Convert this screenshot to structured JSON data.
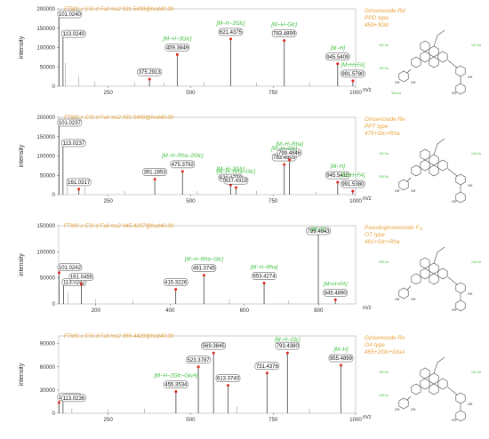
{
  "chart_data": [
    {
      "type": "bar",
      "title": "FTMS-c ESI d Full ms2 991.5499@hcd40.00",
      "compound": [
        "Ginsenoside Rd",
        "PPD type",
        "459+3Glc"
      ],
      "ylabel": "intensity",
      "xlabel": "m/z",
      "xlim": [
        100,
        1000
      ],
      "ylim": [
        0,
        200000
      ],
      "xticks": [
        "250",
        "500",
        "750",
        "1000"
      ],
      "yticks": [
        "0",
        "50000",
        "100000",
        "150000",
        "200000"
      ],
      "peaks": [
        {
          "x": 101.024,
          "y": 185000,
          "label": "101.0240"
        },
        {
          "x": 113.024,
          "y": 140000,
          "label": "113.0240"
        },
        {
          "x": 375.2913,
          "y": 18000,
          "label": "375.2913"
        },
        {
          "x": 459.3849,
          "y": 82000,
          "label": "459.3849"
        },
        {
          "x": 621.4375,
          "y": 122000,
          "label": "621.4375"
        },
        {
          "x": 783.4899,
          "y": 118000,
          "label": "783.4899"
        },
        {
          "x": 945.5409,
          "y": 58000,
          "label": "945.5409"
        },
        {
          "x": 991.578,
          "y": 14000,
          "label": "991.5780"
        }
      ],
      "minor_peaks": [
        {
          "x": 120,
          "y": 60000
        },
        {
          "x": 160,
          "y": 26000
        },
        {
          "x": 210,
          "y": 12000
        },
        {
          "x": 330,
          "y": 9000
        },
        {
          "x": 420,
          "y": 10000
        },
        {
          "x": 540,
          "y": 11000
        },
        {
          "x": 700,
          "y": 9000
        },
        {
          "x": 860,
          "y": 10000
        }
      ],
      "annotations": [
        {
          "text": "[M−H−3Glc]",
          "x": 459.3849
        },
        {
          "text": "[M−H−2Glc]",
          "x": 621.4375
        },
        {
          "text": "[M−H−Glc]",
          "x": 783.4899
        },
        {
          "text": "[M−H]",
          "x": 945.5409
        },
        {
          "text": "[M+H+FA]",
          "x": 991.578
        }
      ],
      "structure_labels": [
        "162 Da",
        "162 Da",
        "162 Da",
        "308 Da"
      ]
    },
    {
      "type": "bar",
      "title": "FTMS-c ESI d Full ms2 991.5499@hcd40.00",
      "compound": [
        "Ginsenoside Re",
        "PPT type",
        "475+Glc+Rha"
      ],
      "ylabel": "intensity",
      "xlabel": "m/z",
      "xlim": [
        100,
        1000
      ],
      "ylim": [
        0,
        200000
      ],
      "xticks": [
        "250",
        "500",
        "750",
        "1000"
      ],
      "yticks": [
        "0",
        "50000",
        "100000",
        "150000",
        "200000"
      ],
      "peaks": [
        {
          "x": 101.0237,
          "y": 188000,
          "label": "101.0237"
        },
        {
          "x": 113.0237,
          "y": 138000,
          "label": "113.0237"
        },
        {
          "x": 161.0317,
          "y": 14000,
          "label": "161.0317"
        },
        {
          "x": 391.2853,
          "y": 40000,
          "label": "391.2853"
        },
        {
          "x": 475.3792,
          "y": 60000,
          "label": "475.3792"
        },
        {
          "x": 621.1773,
          "y": 25000,
          "label": "621.1773"
        },
        {
          "x": 637.4319,
          "y": 18000,
          "label": "637.4319"
        },
        {
          "x": 783.4903,
          "y": 78000,
          "label": "783.4903"
        },
        {
          "x": 799.4846,
          "y": 90000,
          "label": "799.4846"
        },
        {
          "x": 945.5415,
          "y": 32000,
          "label": "945.5415"
        },
        {
          "x": 991.538,
          "y": 9000,
          "label": "991.5380"
        }
      ],
      "minor_peaks": [
        {
          "x": 125,
          "y": 42000
        },
        {
          "x": 180,
          "y": 20000
        },
        {
          "x": 300,
          "y": 9000
        },
        {
          "x": 520,
          "y": 9000
        },
        {
          "x": 700,
          "y": 10000
        },
        {
          "x": 880,
          "y": 8000
        }
      ],
      "annotations": [
        {
          "text": "[M−H−Rha−2Glc]",
          "x": 475.3792
        },
        {
          "text": "[M−H−2Glc]",
          "x": 621.1773
        },
        {
          "text": "[M−H−Rha−Glc]",
          "x": 637.4319
        },
        {
          "text": "[M−H−Glc]",
          "x": 783.4903
        },
        {
          "text": "[M−H−Rha]",
          "x": 799.4846
        },
        {
          "text": "[M−H]",
          "x": 945.5415
        },
        {
          "text": "[M+H+FA]",
          "x": 991.538
        }
      ],
      "structure_labels": [
        "162 Da",
        "146 Da",
        "308 Da"
      ]
    },
    {
      "type": "bar",
      "title": "FTMS-c ESI d Full ms2 945.4297@hcd40.00",
      "compound": [
        "Pseudoginsenoside F₁₁",
        "OT type",
        "491+Glc+Rha"
      ],
      "ylabel": "intensity",
      "xlabel": "m/z",
      "xlim": [
        100,
        900
      ],
      "ylim": [
        0,
        150000
      ],
      "xticks": [
        "200",
        "400",
        "600",
        "800"
      ],
      "yticks": [
        "0",
        "50000",
        "100000",
        "150000"
      ],
      "peaks": [
        {
          "x": 101.0242,
          "y": 60000,
          "label": "101.0242"
        },
        {
          "x": 113.0242,
          "y": 45000,
          "label": "113.0242"
        },
        {
          "x": 161.0455,
          "y": 38000,
          "label": "161.0455"
        },
        {
          "x": 415.3226,
          "y": 28000,
          "label": "415.3226"
        },
        {
          "x": 491.3745,
          "y": 55000,
          "label": "491.3745"
        },
        {
          "x": 653.4274,
          "y": 40000,
          "label": "653.4274"
        },
        {
          "x": 799.4843,
          "y": 135000,
          "label": "799.4843"
        },
        {
          "x": 845.489,
          "y": 8000,
          "label": "845.4890"
        }
      ],
      "minor_peaks": [
        {
          "x": 125,
          "y": 22000
        },
        {
          "x": 200,
          "y": 9000
        },
        {
          "x": 300,
          "y": 7000
        },
        {
          "x": 560,
          "y": 8000
        },
        {
          "x": 720,
          "y": 7000
        }
      ],
      "annotations": [
        {
          "text": "[M−H−Rha−Glc]",
          "x": 491.3745
        },
        {
          "text": "[M−H−Rha]",
          "x": 653.4274
        },
        {
          "text": "[M−H]",
          "x": 799.4843
        },
        {
          "text": "[M+H+FA]",
          "x": 845.489
        }
      ],
      "structure_labels": [
        "308 Da",
        "146 Da"
      ]
    },
    {
      "type": "bar",
      "title": "FTMS-c ESI d Full ms2 955.4429@hcd40.00",
      "compound": [
        "Ginsenoside Ro",
        "OA type",
        "455+2Glc+GluA"
      ],
      "ylabel": "intensity",
      "xlabel": "m/z",
      "xlim": [
        100,
        1000
      ],
      "ylim": [
        0,
        100000
      ],
      "xticks": [
        "250",
        "500",
        "750",
        "1000"
      ],
      "yticks": [
        "0",
        "30000",
        "60000",
        "90000"
      ],
      "peaks": [
        {
          "x": 101.0236,
          "y": 14000,
          "label": "101.0236"
        },
        {
          "x": 113.0236,
          "y": 22000,
          "label": "113.0236"
        },
        {
          "x": 455.3534,
          "y": 28000,
          "label": "455.3534"
        },
        {
          "x": 523.3787,
          "y": 60000,
          "label": "523.3787"
        },
        {
          "x": 569.3845,
          "y": 78000,
          "label": "569.3845"
        },
        {
          "x": 613.374,
          "y": 36000,
          "label": "613.3740"
        },
        {
          "x": 731.4376,
          "y": 52000,
          "label": "731.4376"
        },
        {
          "x": 793.438,
          "y": 78000,
          "label": "793.4380"
        },
        {
          "x": 955.4899,
          "y": 62000,
          "label": "955.4899"
        }
      ],
      "minor_peaks": [
        {
          "x": 140,
          "y": 6000
        },
        {
          "x": 250,
          "y": 5000
        },
        {
          "x": 360,
          "y": 6000
        },
        {
          "x": 640,
          "y": 9000
        },
        {
          "x": 860,
          "y": 6000
        }
      ],
      "annotations": [
        {
          "text": "[M−H−2Glc−GluA]",
          "x": 455.3534
        },
        {
          "text": "[M−H−Glc]",
          "x": 793.438
        },
        {
          "text": "[M−H]",
          "x": 955.4899
        }
      ],
      "structure_labels": [
        "162 Da",
        "162 Da",
        "338 Da"
      ]
    }
  ],
  "colors": {
    "header": "#e8a23a",
    "annotation": "#3fbf3f",
    "peak_marker": "#e0261b",
    "bar": "#555555"
  }
}
